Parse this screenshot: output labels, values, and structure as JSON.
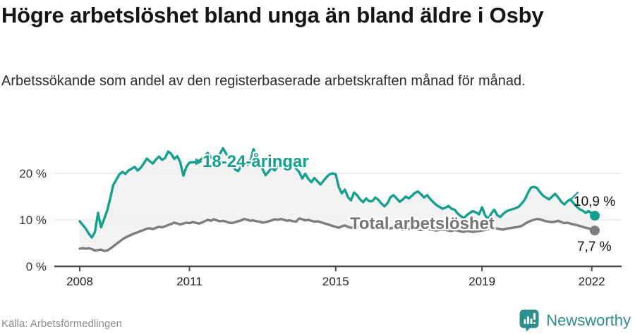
{
  "title": "Högre arbetslöshet bland unga än bland äldre i Osby",
  "subtitle": "Arbetssökande som andel av den registerbaserade arbetskraften månad för månad.",
  "source": "Källa: Arbetsförmedlingen",
  "brand": {
    "name": "Newsworthy",
    "icon": "bar-chart-speech-bubble-icon",
    "color": "#2d8e90"
  },
  "colors": {
    "youth_line": "#13a08d",
    "total_line": "#7d7d7d",
    "area_fill": "#f2f2f2",
    "gridline": "#dcdcdc",
    "axis": "#4a4a4a",
    "text": "#141414"
  },
  "chart_data": {
    "type": "line",
    "title": "Högre arbetslöshet bland unga än bland äldre i Osby",
    "xlabel": "",
    "ylabel": "Arbetssökande som andel av den registerbaserade arbetskraften",
    "unit": "%",
    "x_interval": "monthly",
    "x_start": "2008-01",
    "x_end": "2022-02",
    "ylim": [
      0,
      27
    ],
    "grid": "horizontal",
    "legend_position": "inline-labels",
    "area_fill_between_series": true,
    "y_ticks": [
      "0 %",
      "10 %",
      "20 %"
    ],
    "y_tick_values": [
      0,
      10,
      20
    ],
    "x_tick_labels": [
      "2008",
      "2011",
      "2015",
      "2019",
      "2022"
    ],
    "x_tick_month_index": [
      0,
      36,
      84,
      132,
      168
    ],
    "series": [
      {
        "name": "18-24-åringar",
        "color": "#13a08d",
        "end_label": "10,9 %",
        "end_value": 10.9,
        "values": [
          9.7,
          8.9,
          8.1,
          7.0,
          6.2,
          7.4,
          11.5,
          8.4,
          10.2,
          12.0,
          14.6,
          17.5,
          18.6,
          19.8,
          20.3,
          19.9,
          20.6,
          21.0,
          21.4,
          20.6,
          21.2,
          22.1,
          23.2,
          22.6,
          22.1,
          23.0,
          23.6,
          22.9,
          23.3,
          24.7,
          24.2,
          23.1,
          23.7,
          22.4,
          19.5,
          21.4,
          22.3,
          22.4,
          22.4,
          22.6,
          23.1,
          23.8,
          24.4,
          23.5,
          22.8,
          23.4,
          24.2,
          25.4,
          24.3,
          23.2,
          22.1,
          20.8,
          20.5,
          21.6,
          22.4,
          21.8,
          22.6,
          25.2,
          23.8,
          22.4,
          20.9,
          19.6,
          20.4,
          21.2,
          20.6,
          21.5,
          22.0,
          21.4,
          22.2,
          22.7,
          21.8,
          21.0,
          20.3,
          18.9,
          19.9,
          18.8,
          18.1,
          19.0,
          18.3,
          17.6,
          18.4,
          19.2,
          19.8,
          20.0,
          19.8,
          17.0,
          15.7,
          16.5,
          14.9,
          14.2,
          15.9,
          15.3,
          14.4,
          13.8,
          14.6,
          14.0,
          14.0,
          14.8,
          14.3,
          13.5,
          12.9,
          13.6,
          14.9,
          15.3,
          14.6,
          13.9,
          14.4,
          15.0,
          14.6,
          15.2,
          15.8,
          16.1,
          15.5,
          14.8,
          15.3,
          14.5,
          13.8,
          13.2,
          12.8,
          12.4,
          12.6,
          13.0,
          12.4,
          12.2,
          11.4,
          10.8,
          10.4,
          11.0,
          11.5,
          11.9,
          11.6,
          11.2,
          12.7,
          11.0,
          10.2,
          11.3,
          12.2,
          11.0,
          10.6,
          11.3,
          11.8,
          12.1,
          12.3,
          12.5,
          12.8,
          13.5,
          14.3,
          15.7,
          16.9,
          17.1,
          16.9,
          16.0,
          15.2,
          14.8,
          14.4,
          15.0,
          15.6,
          14.8,
          13.9,
          13.3,
          14.0,
          14.4,
          13.6,
          12.9,
          12.3,
          12.0,
          11.5,
          11.9,
          11.3,
          10.9
        ]
      },
      {
        "name": "Total arbetslöshet",
        "color": "#7d7d7d",
        "end_label": "7,7 %",
        "end_value": 7.7,
        "values": [
          3.8,
          3.9,
          3.8,
          3.9,
          3.7,
          3.4,
          3.5,
          3.6,
          3.3,
          3.4,
          3.8,
          4.3,
          4.8,
          5.3,
          5.8,
          6.2,
          6.5,
          6.8,
          7.1,
          7.3,
          7.6,
          7.8,
          8.1,
          8.2,
          8.0,
          8.3,
          8.5,
          8.4,
          8.6,
          8.9,
          9.1,
          9.4,
          9.2,
          9.0,
          9.2,
          9.4,
          9.3,
          9.5,
          9.4,
          9.2,
          9.4,
          9.7,
          10.0,
          9.8,
          10.1,
          9.9,
          9.7,
          9.8,
          9.6,
          9.4,
          9.3,
          9.5,
          9.7,
          9.9,
          10.2,
          10.0,
          9.8,
          9.9,
          9.7,
          9.6,
          9.4,
          9.5,
          9.7,
          9.9,
          10.1,
          10.0,
          10.2,
          10.0,
          9.8,
          9.9,
          9.7,
          9.6,
          10.3,
          10.1,
          9.9,
          10.0,
          9.8,
          9.6,
          9.7,
          9.5,
          9.3,
          9.1,
          8.9,
          8.7,
          8.5,
          8.3,
          8.6,
          8.8,
          8.5,
          8.3,
          8.4,
          8.6,
          8.4,
          8.2,
          8.3,
          8.5,
          8.3,
          8.2,
          8.4,
          8.3,
          8.1,
          8.0,
          8.2,
          8.3,
          8.1,
          8.0,
          7.9,
          8.1,
          8.0,
          8.2,
          8.1,
          7.9,
          7.8,
          8.0,
          8.1,
          7.9,
          7.8,
          7.7,
          7.8,
          7.9,
          7.8,
          7.7,
          7.6,
          7.8,
          7.7,
          7.5,
          7.4,
          7.6,
          7.5,
          7.4,
          7.5,
          7.6,
          7.7,
          7.8,
          8.0,
          8.1,
          8.2,
          8.1,
          8.0,
          7.9,
          8.1,
          8.2,
          8.3,
          8.4,
          8.5,
          8.7,
          9.1,
          9.5,
          9.8,
          10.0,
          10.2,
          10.1,
          9.9,
          9.7,
          9.6,
          9.5,
          9.6,
          9.8,
          9.5,
          9.3,
          9.4,
          9.2,
          9.0,
          8.9,
          8.7,
          8.5,
          8.3,
          8.2,
          7.9,
          7.7
        ]
      }
    ]
  }
}
